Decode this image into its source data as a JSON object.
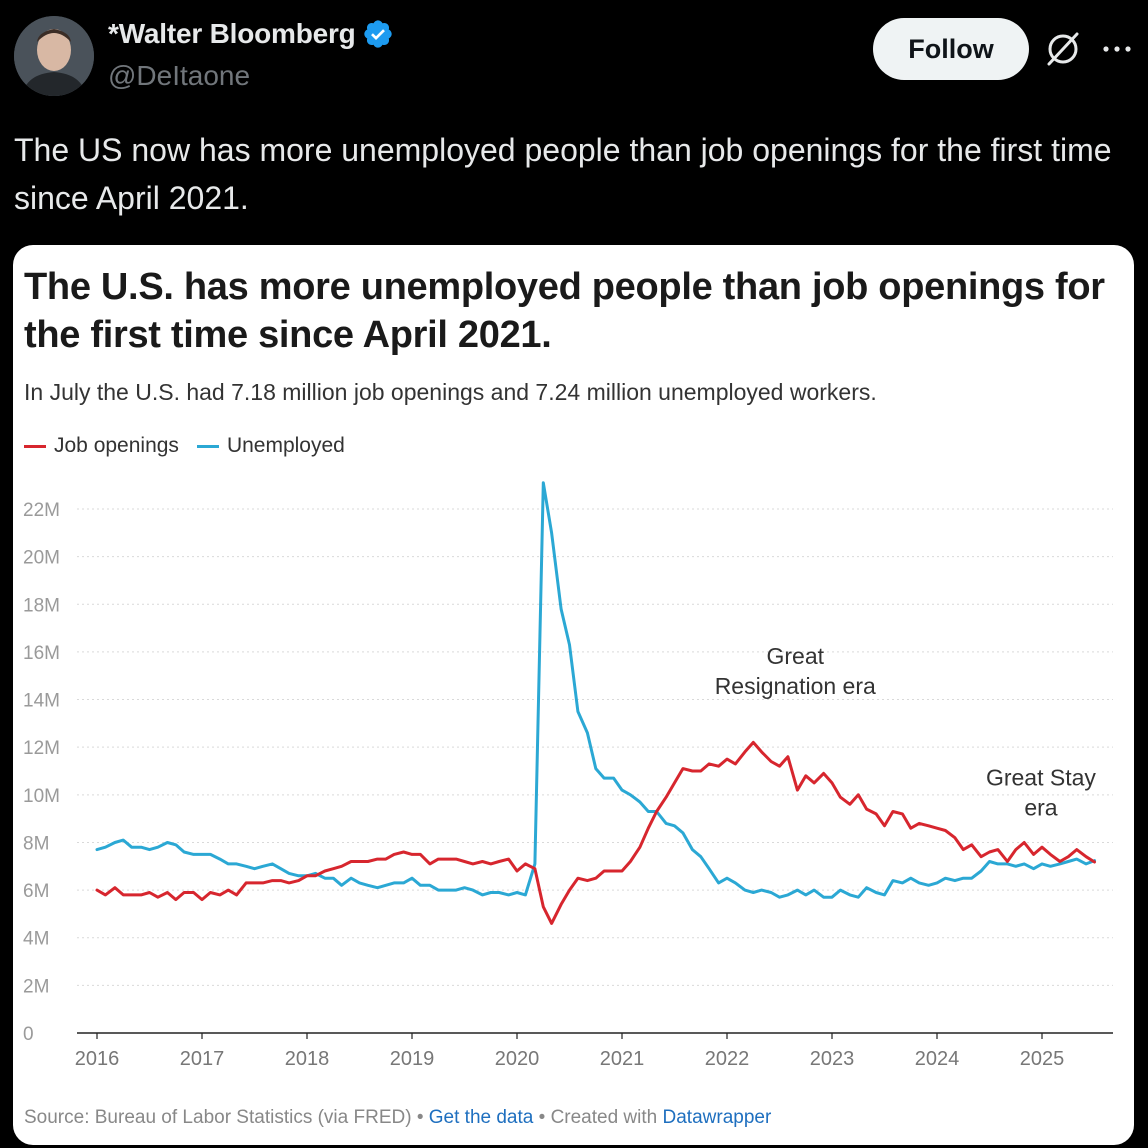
{
  "author": {
    "display_name": "*Walter Bloomberg",
    "handle": "@DeItaone",
    "avatar_icon": "person-avatar",
    "verified_icon": "verified-badge-icon"
  },
  "actions": {
    "follow_label": "Follow",
    "grok_icon": "grok-icon",
    "more_icon": "more-icon"
  },
  "tweet": {
    "text": "The US now has more unemployed people than job openings for the first time since April 2021."
  },
  "card": {
    "title": "The U.S. has more unemployed people than job openings for the first time since April 2021.",
    "subtitle": "In July the U.S. had 7.18 million job openings and 7.24 million unemployed workers.",
    "footer": {
      "source": "Source: Bureau of Labor Statistics (via FRED)",
      "sep": " • ",
      "get_data": "Get the data",
      "created": "Created with ",
      "tool": "Datawrapper"
    }
  },
  "colors": {
    "job_openings": "#d7262e",
    "unemployed": "#2ba8d4"
  },
  "chart_data": {
    "type": "line",
    "xlim": [
      2016,
      2025.6
    ],
    "ylim": [
      0,
      22000000
    ],
    "yticks": [
      {
        "v": 0,
        "label": "0"
      },
      {
        "v": 2000000,
        "label": "2M"
      },
      {
        "v": 4000000,
        "label": "4M"
      },
      {
        "v": 6000000,
        "label": "6M"
      },
      {
        "v": 8000000,
        "label": "8M"
      },
      {
        "v": 10000000,
        "label": "10M"
      },
      {
        "v": 12000000,
        "label": "12M"
      },
      {
        "v": 14000000,
        "label": "14M"
      },
      {
        "v": 16000000,
        "label": "16M"
      },
      {
        "v": 18000000,
        "label": "18M"
      },
      {
        "v": 20000000,
        "label": "20M"
      },
      {
        "v": 22000000,
        "label": "22M"
      }
    ],
    "xticks": [
      {
        "v": 2016,
        "label": "2016"
      },
      {
        "v": 2017,
        "label": "2017"
      },
      {
        "v": 2018,
        "label": "2018"
      },
      {
        "v": 2019,
        "label": "2019"
      },
      {
        "v": 2020,
        "label": "2020"
      },
      {
        "v": 2021,
        "label": "2021"
      },
      {
        "v": 2022,
        "label": "2022"
      },
      {
        "v": 2023,
        "label": "2023"
      },
      {
        "v": 2024,
        "label": "2024"
      },
      {
        "v": 2025,
        "label": "2025"
      }
    ],
    "grid": true,
    "legend": "top-left",
    "series": [
      {
        "name": "Job openings",
        "color": "#d7262e",
        "points": [
          [
            2016.0,
            6.0
          ],
          [
            2016.08,
            5.8
          ],
          [
            2016.17,
            6.1
          ],
          [
            2016.25,
            5.8
          ],
          [
            2016.33,
            5.8
          ],
          [
            2016.42,
            5.8
          ],
          [
            2016.5,
            5.9
          ],
          [
            2016.58,
            5.7
          ],
          [
            2016.67,
            5.9
          ],
          [
            2016.75,
            5.6
          ],
          [
            2016.83,
            5.9
          ],
          [
            2016.92,
            5.9
          ],
          [
            2017.0,
            5.6
          ],
          [
            2017.08,
            5.9
          ],
          [
            2017.17,
            5.8
          ],
          [
            2017.25,
            6.0
          ],
          [
            2017.33,
            5.8
          ],
          [
            2017.42,
            6.3
          ],
          [
            2017.5,
            6.3
          ],
          [
            2017.58,
            6.3
          ],
          [
            2017.67,
            6.4
          ],
          [
            2017.75,
            6.4
          ],
          [
            2017.83,
            6.3
          ],
          [
            2017.92,
            6.4
          ],
          [
            2018.0,
            6.6
          ],
          [
            2018.08,
            6.6
          ],
          [
            2018.17,
            6.8
          ],
          [
            2018.25,
            6.9
          ],
          [
            2018.33,
            7.0
          ],
          [
            2018.42,
            7.2
          ],
          [
            2018.5,
            7.2
          ],
          [
            2018.58,
            7.2
          ],
          [
            2018.67,
            7.3
          ],
          [
            2018.75,
            7.3
          ],
          [
            2018.83,
            7.5
          ],
          [
            2018.92,
            7.6
          ],
          [
            2019.0,
            7.5
          ],
          [
            2019.08,
            7.5
          ],
          [
            2019.17,
            7.1
          ],
          [
            2019.25,
            7.3
          ],
          [
            2019.33,
            7.3
          ],
          [
            2019.42,
            7.3
          ],
          [
            2019.5,
            7.2
          ],
          [
            2019.58,
            7.1
          ],
          [
            2019.67,
            7.2
          ],
          [
            2019.75,
            7.1
          ],
          [
            2019.83,
            7.2
          ],
          [
            2019.92,
            7.3
          ],
          [
            2020.0,
            6.8
          ],
          [
            2020.08,
            7.1
          ],
          [
            2020.17,
            6.9
          ],
          [
            2020.25,
            5.3
          ],
          [
            2020.33,
            4.6
          ],
          [
            2020.42,
            5.4
          ],
          [
            2020.5,
            6.0
          ],
          [
            2020.58,
            6.5
          ],
          [
            2020.67,
            6.4
          ],
          [
            2020.75,
            6.5
          ],
          [
            2020.83,
            6.8
          ],
          [
            2020.92,
            6.8
          ],
          [
            2021.0,
            6.8
          ],
          [
            2021.08,
            7.2
          ],
          [
            2021.17,
            7.8
          ],
          [
            2021.25,
            8.6
          ],
          [
            2021.33,
            9.3
          ],
          [
            2021.42,
            9.9
          ],
          [
            2021.5,
            10.5
          ],
          [
            2021.58,
            11.1
          ],
          [
            2021.67,
            11.0
          ],
          [
            2021.75,
            11.0
          ],
          [
            2021.83,
            11.3
          ],
          [
            2021.92,
            11.2
          ],
          [
            2022.0,
            11.5
          ],
          [
            2022.08,
            11.3
          ],
          [
            2022.17,
            11.8
          ],
          [
            2022.25,
            12.2
          ],
          [
            2022.33,
            11.8
          ],
          [
            2022.42,
            11.4
          ],
          [
            2022.5,
            11.2
          ],
          [
            2022.58,
            11.6
          ],
          [
            2022.67,
            10.2
          ],
          [
            2022.75,
            10.8
          ],
          [
            2022.83,
            10.5
          ],
          [
            2022.92,
            10.9
          ],
          [
            2023.0,
            10.5
          ],
          [
            2023.08,
            9.9
          ],
          [
            2023.17,
            9.6
          ],
          [
            2023.25,
            10.0
          ],
          [
            2023.33,
            9.4
          ],
          [
            2023.42,
            9.2
          ],
          [
            2023.5,
            8.7
          ],
          [
            2023.58,
            9.3
          ],
          [
            2023.67,
            9.2
          ],
          [
            2023.75,
            8.6
          ],
          [
            2023.83,
            8.8
          ],
          [
            2023.92,
            8.7
          ],
          [
            2024.0,
            8.6
          ],
          [
            2024.08,
            8.5
          ],
          [
            2024.17,
            8.2
          ],
          [
            2024.25,
            7.7
          ],
          [
            2024.33,
            7.9
          ],
          [
            2024.42,
            7.4
          ],
          [
            2024.5,
            7.6
          ],
          [
            2024.58,
            7.7
          ],
          [
            2024.67,
            7.2
          ],
          [
            2024.75,
            7.7
          ],
          [
            2024.83,
            8.0
          ],
          [
            2024.92,
            7.5
          ],
          [
            2025.0,
            7.8
          ],
          [
            2025.08,
            7.5
          ],
          [
            2025.17,
            7.2
          ],
          [
            2025.25,
            7.4
          ],
          [
            2025.33,
            7.7
          ],
          [
            2025.42,
            7.4
          ],
          [
            2025.5,
            7.18
          ]
        ]
      },
      {
        "name": "Unemployed",
        "color": "#2ba8d4",
        "points": [
          [
            2016.0,
            7.7
          ],
          [
            2016.08,
            7.8
          ],
          [
            2016.17,
            8.0
          ],
          [
            2016.25,
            8.1
          ],
          [
            2016.33,
            7.8
          ],
          [
            2016.42,
            7.8
          ],
          [
            2016.5,
            7.7
          ],
          [
            2016.58,
            7.8
          ],
          [
            2016.67,
            8.0
          ],
          [
            2016.75,
            7.9
          ],
          [
            2016.83,
            7.6
          ],
          [
            2016.92,
            7.5
          ],
          [
            2017.0,
            7.5
          ],
          [
            2017.08,
            7.5
          ],
          [
            2017.17,
            7.3
          ],
          [
            2017.25,
            7.1
          ],
          [
            2017.33,
            7.1
          ],
          [
            2017.42,
            7.0
          ],
          [
            2017.5,
            6.9
          ],
          [
            2017.58,
            7.0
          ],
          [
            2017.67,
            7.1
          ],
          [
            2017.75,
            6.9
          ],
          [
            2017.83,
            6.7
          ],
          [
            2017.92,
            6.6
          ],
          [
            2018.0,
            6.6
          ],
          [
            2018.08,
            6.7
          ],
          [
            2018.17,
            6.5
          ],
          [
            2018.25,
            6.5
          ],
          [
            2018.33,
            6.2
          ],
          [
            2018.42,
            6.5
          ],
          [
            2018.5,
            6.3
          ],
          [
            2018.58,
            6.2
          ],
          [
            2018.67,
            6.1
          ],
          [
            2018.75,
            6.2
          ],
          [
            2018.83,
            6.3
          ],
          [
            2018.92,
            6.3
          ],
          [
            2019.0,
            6.5
          ],
          [
            2019.08,
            6.2
          ],
          [
            2019.17,
            6.2
          ],
          [
            2019.25,
            6.0
          ],
          [
            2019.33,
            6.0
          ],
          [
            2019.42,
            6.0
          ],
          [
            2019.5,
            6.1
          ],
          [
            2019.58,
            6.0
          ],
          [
            2019.67,
            5.8
          ],
          [
            2019.75,
            5.9
          ],
          [
            2019.83,
            5.9
          ],
          [
            2019.92,
            5.8
          ],
          [
            2020.0,
            5.9
          ],
          [
            2020.08,
            5.8
          ],
          [
            2020.17,
            7.1
          ],
          [
            2020.25,
            23.1
          ],
          [
            2020.33,
            21.0
          ],
          [
            2020.42,
            17.8
          ],
          [
            2020.5,
            16.3
          ],
          [
            2020.58,
            13.5
          ],
          [
            2020.67,
            12.6
          ],
          [
            2020.75,
            11.1
          ],
          [
            2020.83,
            10.7
          ],
          [
            2020.92,
            10.7
          ],
          [
            2021.0,
            10.2
          ],
          [
            2021.08,
            10.0
          ],
          [
            2021.17,
            9.7
          ],
          [
            2021.25,
            9.3
          ],
          [
            2021.33,
            9.3
          ],
          [
            2021.42,
            8.8
          ],
          [
            2021.5,
            8.7
          ],
          [
            2021.58,
            8.4
          ],
          [
            2021.67,
            7.7
          ],
          [
            2021.75,
            7.4
          ],
          [
            2021.83,
            6.9
          ],
          [
            2021.92,
            6.3
          ],
          [
            2022.0,
            6.5
          ],
          [
            2022.08,
            6.3
          ],
          [
            2022.17,
            6.0
          ],
          [
            2022.25,
            5.9
          ],
          [
            2022.33,
            6.0
          ],
          [
            2022.42,
            5.9
          ],
          [
            2022.5,
            5.7
          ],
          [
            2022.58,
            5.8
          ],
          [
            2022.67,
            6.0
          ],
          [
            2022.75,
            5.8
          ],
          [
            2022.83,
            6.0
          ],
          [
            2022.92,
            5.7
          ],
          [
            2023.0,
            5.7
          ],
          [
            2023.08,
            6.0
          ],
          [
            2023.17,
            5.8
          ],
          [
            2023.25,
            5.7
          ],
          [
            2023.33,
            6.1
          ],
          [
            2023.42,
            5.9
          ],
          [
            2023.5,
            5.8
          ],
          [
            2023.58,
            6.4
          ],
          [
            2023.67,
            6.3
          ],
          [
            2023.75,
            6.5
          ],
          [
            2023.83,
            6.3
          ],
          [
            2023.92,
            6.2
          ],
          [
            2024.0,
            6.3
          ],
          [
            2024.08,
            6.5
          ],
          [
            2024.17,
            6.4
          ],
          [
            2024.25,
            6.5
          ],
          [
            2024.33,
            6.5
          ],
          [
            2024.42,
            6.8
          ],
          [
            2024.5,
            7.2
          ],
          [
            2024.58,
            7.1
          ],
          [
            2024.67,
            7.1
          ],
          [
            2024.75,
            7.0
          ],
          [
            2024.83,
            7.1
          ],
          [
            2024.92,
            6.9
          ],
          [
            2025.0,
            7.1
          ],
          [
            2025.08,
            7.0
          ],
          [
            2025.17,
            7.1
          ],
          [
            2025.25,
            7.2
          ],
          [
            2025.33,
            7.3
          ],
          [
            2025.42,
            7.1
          ],
          [
            2025.5,
            7.24
          ]
        ]
      }
    ],
    "annotations": [
      {
        "lines": [
          "Great",
          "Resignation era"
        ],
        "x": 2022.65,
        "y": 15.5
      },
      {
        "lines": [
          "Great Stay",
          "era"
        ],
        "x": 2024.99,
        "y": 10.4
      }
    ]
  }
}
